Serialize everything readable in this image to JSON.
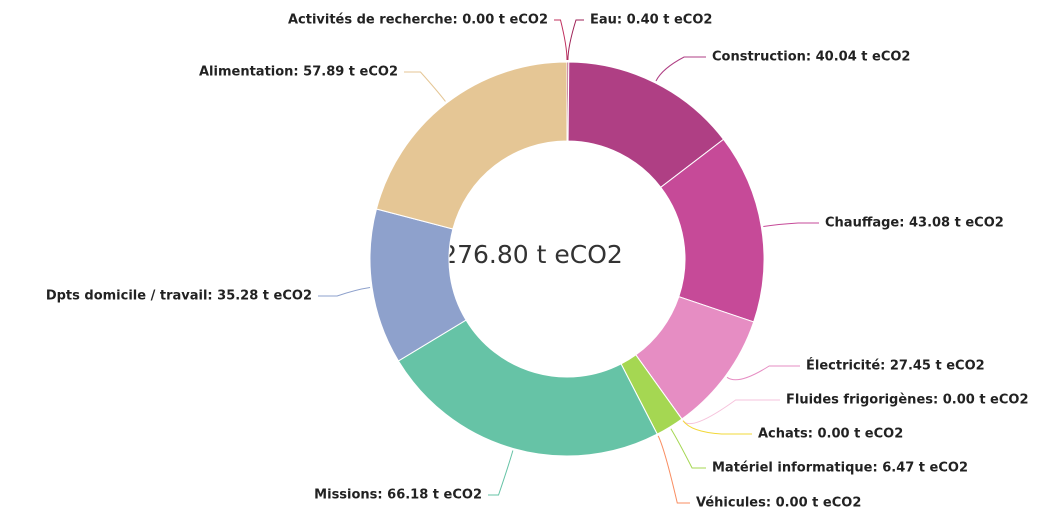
{
  "chart_data": {
    "type": "donut",
    "center_text": "276.80 t eCO2",
    "values": [
      0.4,
      40.04,
      43.08,
      27.45,
      0,
      0,
      6.47,
      0,
      66.18,
      35.28,
      57.89,
      0
    ],
    "value_labels": [
      "Eau: 0.40 t eCO2",
      "Construction: 40.04 t eCO2",
      "Chauffage: 43.08 t eCO2",
      "Électricité: 27.45 t eCO2",
      "Fluides frigorigènes: 0.00 t eCO2",
      "Achats: 0.00 t eCO2",
      "Matériel informatique: 6.47 t eCO2",
      "Véhicules: 0.00 t eCO2",
      "Missions: 66.18 t eCO2",
      "Dpts domicile / travail: 35.28 t eCO2",
      "Alimentation: 57.89 t eCO2",
      "Activités de recherche: 0.00 t eCO2"
    ],
    "colors": [
      "#9e2257",
      "#af3f84",
      "#c64a98",
      "#e68dc3",
      "#f6c3dc",
      "#f2d83a",
      "#a5d752",
      "#f98e62",
      "#66c3a6",
      "#8ea1cc",
      "#e5c695",
      "#c0305e"
    ]
  }
}
